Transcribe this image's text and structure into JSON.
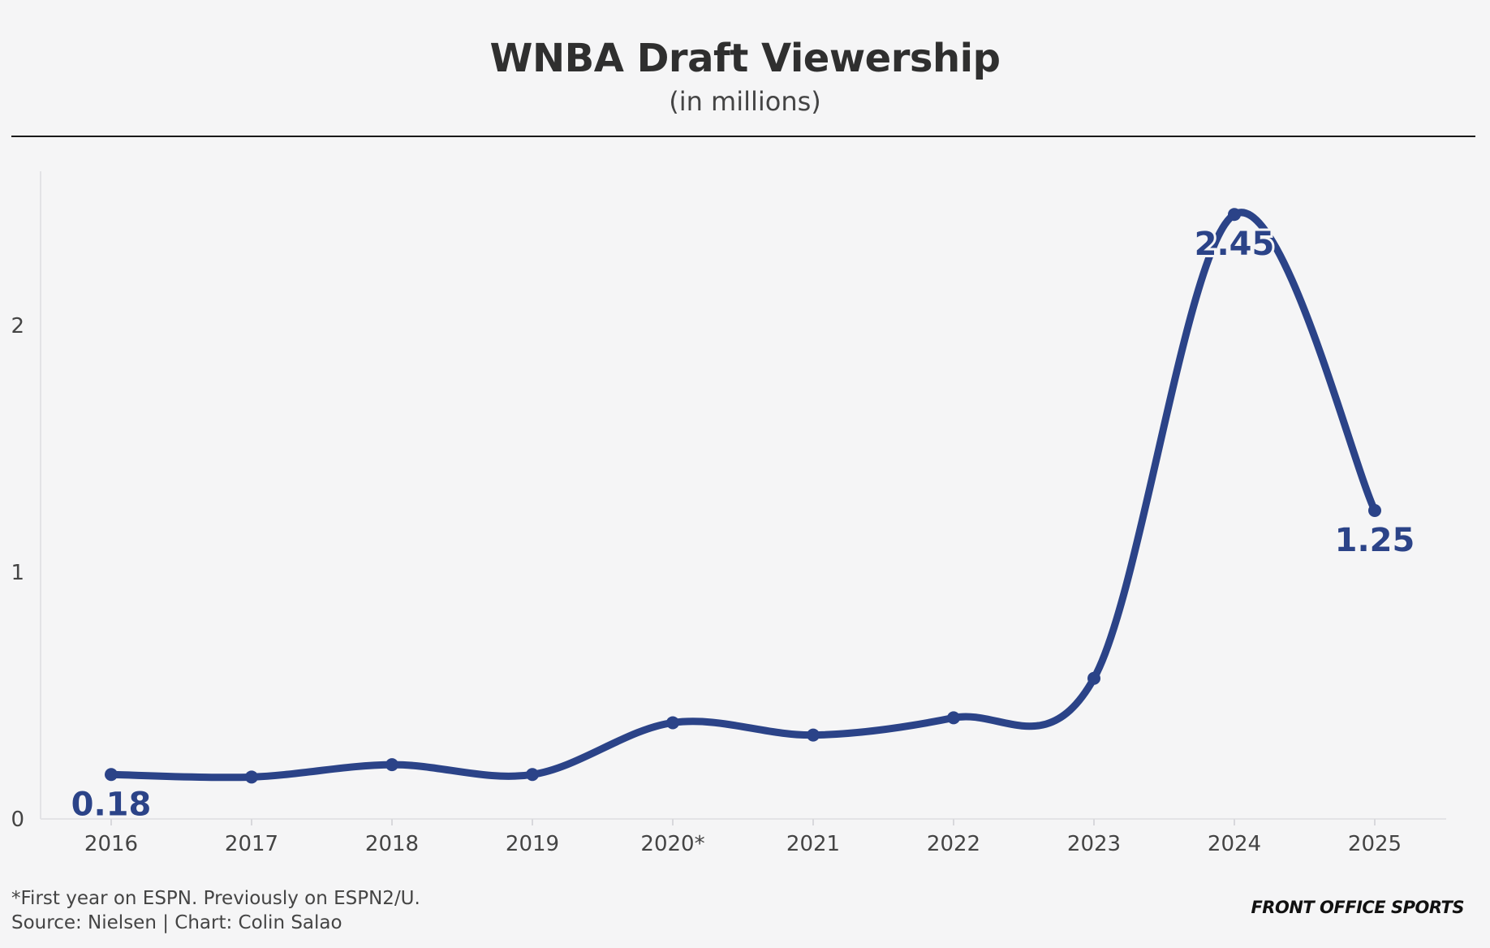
{
  "chart_data": {
    "type": "line",
    "title": "WNBA Draft Viewership",
    "subtitle": "(in millions)",
    "categories": [
      "2016",
      "2017",
      "2018",
      "2019",
      "2020*",
      "2021",
      "2022",
      "2023",
      "2024",
      "2025"
    ],
    "series": [
      {
        "values": [
          0.18,
          0.17,
          0.22,
          0.18,
          0.39,
          0.34,
          0.41,
          0.57,
          2.45,
          1.25
        ]
      }
    ],
    "data_labels": [
      {
        "index": 0,
        "text": "0.18"
      },
      {
        "index": 8,
        "text": "2.45"
      },
      {
        "index": 9,
        "text": "1.25"
      }
    ],
    "yticks": [
      "0",
      "1",
      "2"
    ],
    "ylim": [
      0,
      2.6
    ],
    "line_color": "#2b4388",
    "grid": false,
    "legend": "none"
  },
  "footer": {
    "footnote": "*First year on ESPN. Previously on ESPN2/U.",
    "source": "Source: Nielsen | Chart: Colin Salao",
    "brand": "FRONT OFFICE SPORTS"
  }
}
